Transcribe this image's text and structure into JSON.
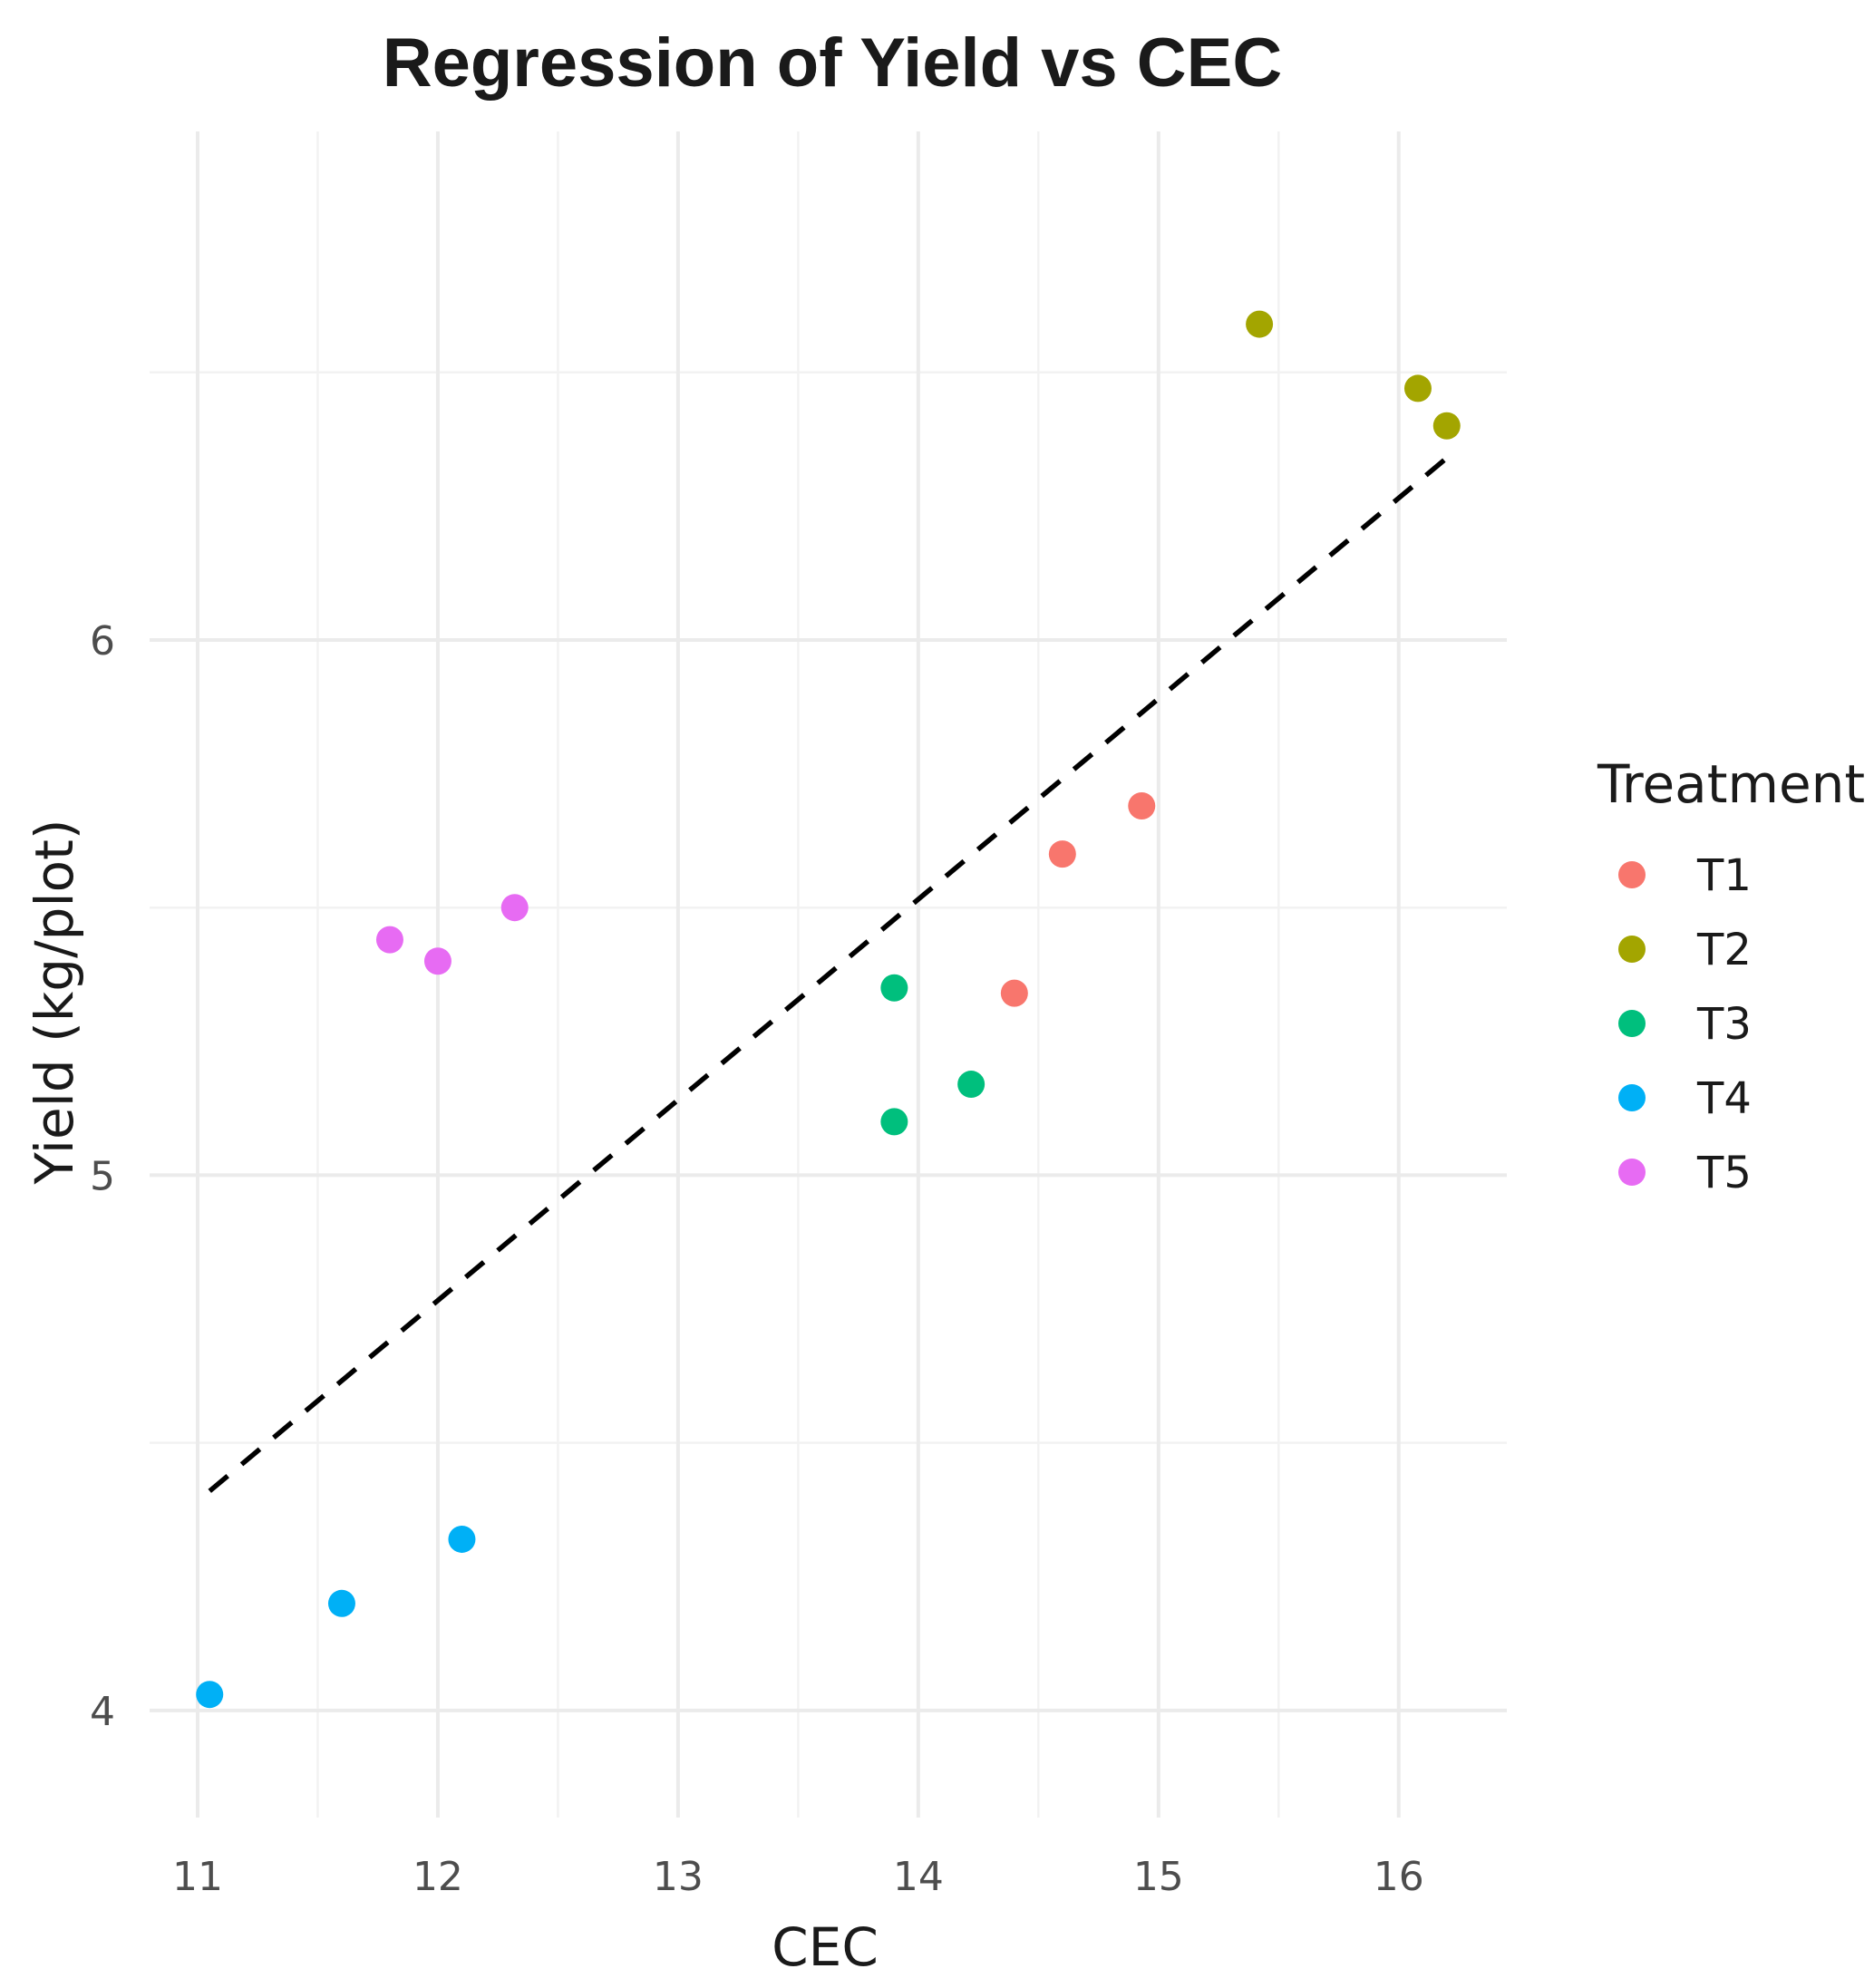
{
  "chart_data": {
    "type": "scatter",
    "title": "Regression of Yield vs CEC",
    "xlabel": "CEC",
    "ylabel": "Yield (kg/plot)",
    "xlim": [
      10.8,
      16.45
    ],
    "ylim": [
      3.8,
      6.95
    ],
    "x_major_ticks": [
      11,
      12,
      13,
      14,
      15,
      16
    ],
    "x_minor_ticks": [
      11.5,
      12.5,
      13.5,
      14.5,
      15.5
    ],
    "y_major_ticks": [
      4,
      5,
      6
    ],
    "y_minor_ticks": [
      4.5,
      5.5,
      6.5
    ],
    "grid": true,
    "legend": {
      "title": "Treatment",
      "position": "right"
    },
    "series": [
      {
        "name": "T1",
        "color": "#F8766D",
        "points": [
          {
            "x": 14.4,
            "y": 5.34
          },
          {
            "x": 14.6,
            "y": 5.6
          },
          {
            "x": 14.93,
            "y": 5.69
          }
        ]
      },
      {
        "name": "T2",
        "color": "#A3A500",
        "points": [
          {
            "x": 15.42,
            "y": 6.59
          },
          {
            "x": 16.08,
            "y": 6.47
          },
          {
            "x": 16.2,
            "y": 6.4
          }
        ]
      },
      {
        "name": "T3",
        "color": "#00BF7D",
        "points": [
          {
            "x": 13.9,
            "y": 5.35
          },
          {
            "x": 13.9,
            "y": 5.1
          },
          {
            "x": 14.22,
            "y": 5.17
          }
        ]
      },
      {
        "name": "T4",
        "color": "#00B0F6",
        "points": [
          {
            "x": 11.05,
            "y": 4.03
          },
          {
            "x": 11.6,
            "y": 4.2
          },
          {
            "x": 12.1,
            "y": 4.32
          }
        ]
      },
      {
        "name": "T5",
        "color": "#E76BF3",
        "points": [
          {
            "x": 11.8,
            "y": 5.44
          },
          {
            "x": 12.0,
            "y": 5.4
          },
          {
            "x": 12.32,
            "y": 5.5
          }
        ]
      }
    ],
    "regression_line": {
      "style": "dashed",
      "color": "#000000",
      "x": [
        11.05,
        16.2
      ],
      "y": [
        4.41,
        6.34
      ]
    }
  }
}
